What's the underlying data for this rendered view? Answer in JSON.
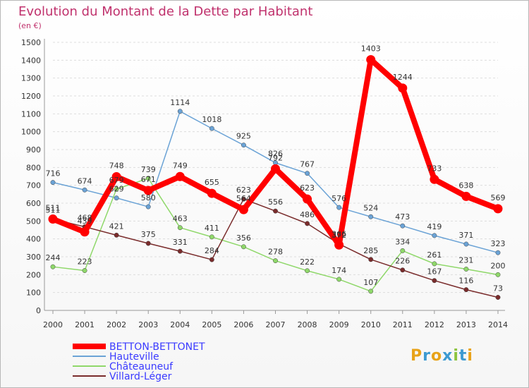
{
  "chart_data": {
    "type": "line",
    "title": "Evolution du Montant de la Dette par Habitant",
    "subtitle": "(en €)",
    "x": [
      "2000",
      "2001",
      "2002",
      "2003",
      "2004",
      "2005",
      "2006",
      "2007",
      "2008",
      "2009",
      "2010",
      "2011",
      "2012",
      "2013",
      "2014"
    ],
    "ylim": [
      0,
      1500
    ],
    "yticks": [
      0,
      100,
      200,
      300,
      400,
      500,
      600,
      700,
      800,
      900,
      1000,
      1100,
      1200,
      1300,
      1400,
      1500
    ],
    "grid": true,
    "legend_position": "bottom-left",
    "series": [
      {
        "name": "BETTON-BETTONET",
        "color": "#ff0000",
        "emphasis": true,
        "values": [
          511,
          439,
          748,
          671,
          749,
          655,
          564,
          792,
          623,
          366,
          1403,
          1244,
          733,
          638,
          569
        ]
      },
      {
        "name": "Hauteville",
        "color": "#6ba3d6",
        "values": [
          716,
          674,
          629,
          580,
          1114,
          1018,
          925,
          826,
          767,
          576,
          524,
          473,
          419,
          371,
          323
        ]
      },
      {
        "name": "Châteauneuf",
        "color": "#8fd86a",
        "values": [
          244,
          223,
          679,
          739,
          463,
          411,
          356,
          278,
          222,
          174,
          107,
          334,
          261,
          231,
          200
        ]
      },
      {
        "name": "Villard-Léger",
        "color": "#7a2c2c",
        "values": [
          511,
          468,
          421,
          375,
          331,
          284,
          623,
          556,
          486,
          372,
          285,
          226,
          167,
          116,
          73
        ]
      }
    ]
  },
  "logo": {
    "text": "Proxiti",
    "letters": [
      "P",
      "r",
      "o",
      "x",
      "i",
      "t",
      "i"
    ],
    "colors": [
      "#e8a319",
      "#3d9ad1",
      "#e8a319",
      "#3d9ad1",
      "#8cc43f",
      "#3d9ad1",
      "#e8a319"
    ]
  }
}
